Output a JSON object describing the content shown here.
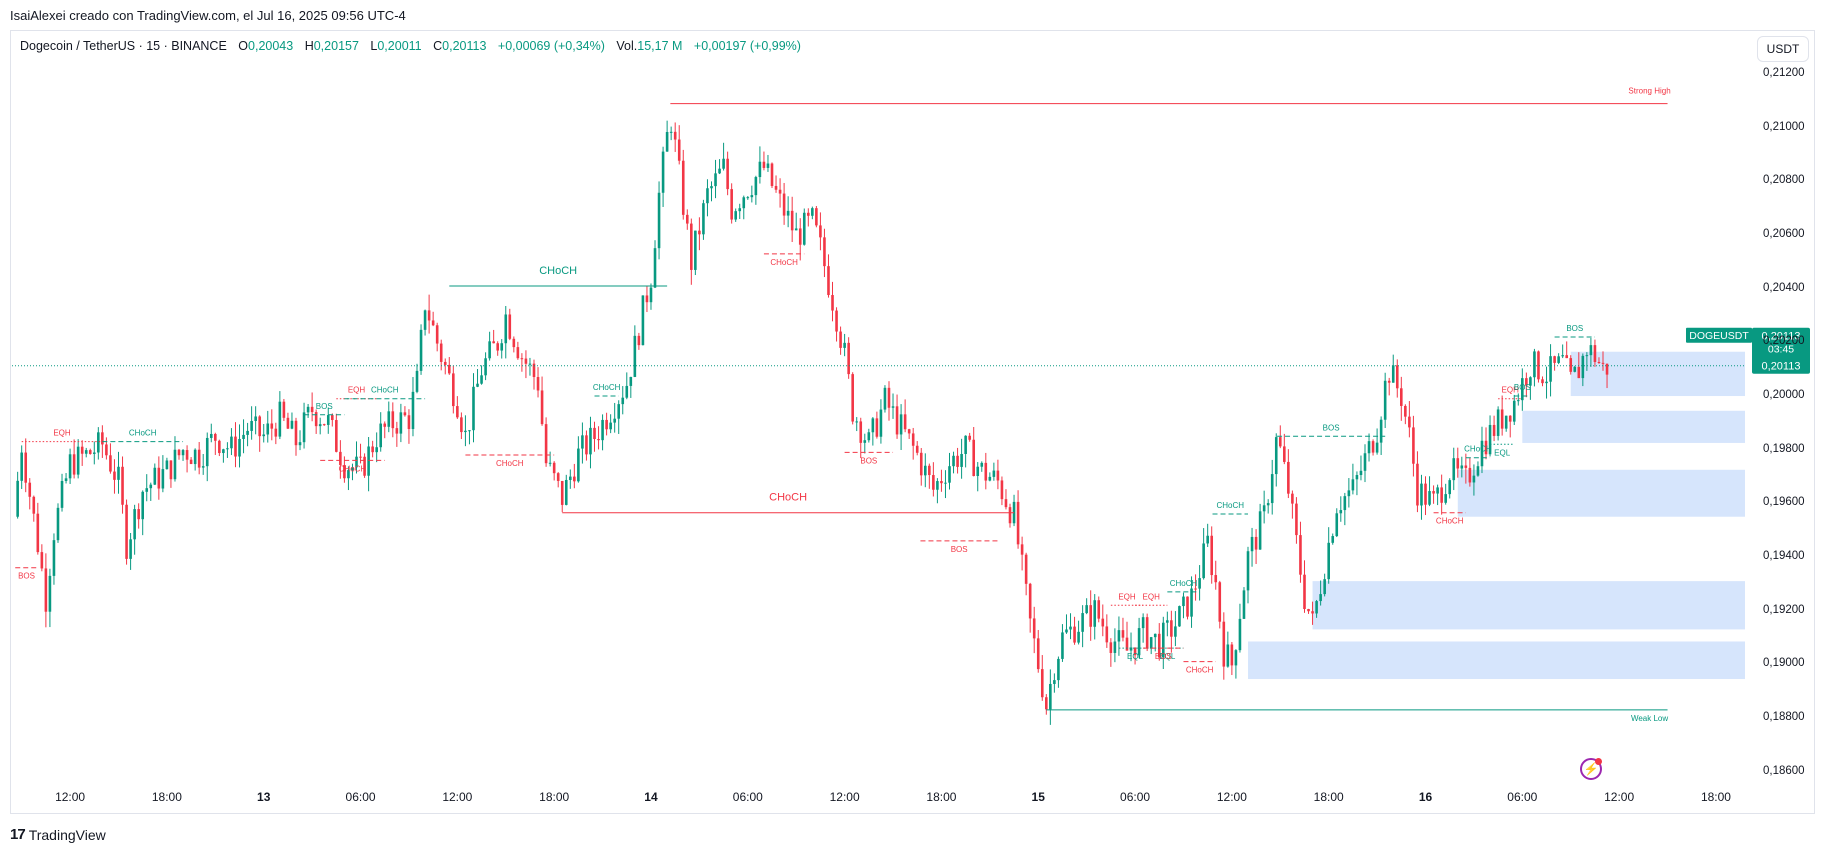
{
  "header": {
    "credit": "IsaiAlexei creado con TradingView.com, el Jul 16, 2025 09:56 UTC-4"
  },
  "legend": {
    "symbol": "Dogecoin / TetherUS · 15 · BINANCE",
    "o_label": "O",
    "o_value": "0,20043",
    "h_label": "H",
    "h_value": "0,20157",
    "l_label": "L",
    "l_value": "0,20011",
    "c_label": "C",
    "c_value": "0,20113",
    "change": "+0,00069 (+0,34%)",
    "vol_label": "Vol.",
    "vol_value": "15,17 M",
    "vol_change": "+0,00197 (+0,99%)"
  },
  "toolbar": {
    "currency": "USDT"
  },
  "footer": {
    "brand": "TradingView",
    "brand_mark": "17"
  },
  "colors": {
    "up": "#089981",
    "down": "#f23645",
    "zone": "#cfe0fb",
    "price_tag": "#089981"
  },
  "chart_data": {
    "type": "candlestick",
    "y_ticks": [
      "0,21200",
      "0,21000",
      "0,20800",
      "0,20600",
      "0,20400",
      "0,20200",
      "0,20000",
      "0,19800",
      "0,19600",
      "0,19400",
      "0,19200",
      "0,19000",
      "0,18800",
      "0,18600"
    ],
    "y_tick_values": [
      0.212,
      0.21,
      0.208,
      0.206,
      0.204,
      0.202,
      0.2,
      0.198,
      0.196,
      0.194,
      0.192,
      0.19,
      0.188,
      0.186
    ],
    "ylim": [
      0.1855,
      0.2126
    ],
    "x_ticks": [
      "12:00",
      "18:00",
      "13",
      "06:00",
      "12:00",
      "18:00",
      "14",
      "06:00",
      "12:00",
      "18:00",
      "15",
      "06:00",
      "12:00",
      "18:00",
      "16",
      "06:00",
      "12:00",
      "18:00"
    ],
    "x_tick_hours": [
      12,
      18,
      24,
      30,
      36,
      42,
      48,
      54,
      60,
      66,
      72,
      78,
      84,
      90,
      96,
      102,
      108,
      114
    ],
    "x_range_hours": [
      8.4,
      115.8
    ],
    "current": {
      "symbol": "DOGEUSDT",
      "price": "0,20113",
      "price_value": 0.20113,
      "countdown": "03:45"
    },
    "price_path": [
      {
        "t": 8.5,
        "p": 0.1955
      },
      {
        "t": 9,
        "p": 0.1982
      },
      {
        "t": 10,
        "p": 0.1945
      },
      {
        "t": 10.5,
        "p": 0.1925
      },
      {
        "t": 11,
        "p": 0.195
      },
      {
        "t": 12,
        "p": 0.1975
      },
      {
        "t": 13,
        "p": 0.1978
      },
      {
        "t": 14,
        "p": 0.1982
      },
      {
        "t": 15,
        "p": 0.1968
      },
      {
        "t": 15.5,
        "p": 0.1945
      },
      {
        "t": 16.5,
        "p": 0.1965
      },
      {
        "t": 18,
        "p": 0.1972
      },
      {
        "t": 19,
        "p": 0.198
      },
      {
        "t": 20,
        "p": 0.1978
      },
      {
        "t": 21,
        "p": 0.1985
      },
      {
        "t": 22,
        "p": 0.198
      },
      {
        "t": 23,
        "p": 0.1988
      },
      {
        "t": 24,
        "p": 0.1985
      },
      {
        "t": 25,
        "p": 0.1992
      },
      {
        "t": 26,
        "p": 0.1983
      },
      {
        "t": 27,
        "p": 0.1995
      },
      {
        "t": 28,
        "p": 0.199
      },
      {
        "t": 29,
        "p": 0.1975
      },
      {
        "t": 30,
        "p": 0.1972
      },
      {
        "t": 31,
        "p": 0.1985
      },
      {
        "t": 32,
        "p": 0.199
      },
      {
        "t": 33,
        "p": 0.1992
      },
      {
        "t": 33.5,
        "p": 0.2005
      },
      {
        "t": 34,
        "p": 0.2035
      },
      {
        "t": 35,
        "p": 0.2015
      },
      {
        "t": 36,
        "p": 0.1998
      },
      {
        "t": 36.5,
        "p": 0.1985
      },
      {
        "t": 37.5,
        "p": 0.201
      },
      {
        "t": 38.5,
        "p": 0.202
      },
      {
        "t": 39,
        "p": 0.203
      },
      {
        "t": 40,
        "p": 0.2015
      },
      {
        "t": 41,
        "p": 0.2005
      },
      {
        "t": 41.5,
        "p": 0.1975
      },
      {
        "t": 42.5,
        "p": 0.1962
      },
      {
        "t": 43.5,
        "p": 0.1978
      },
      {
        "t": 44.5,
        "p": 0.1985
      },
      {
        "t": 45.5,
        "p": 0.1995
      },
      {
        "t": 46.5,
        "p": 0.2005
      },
      {
        "t": 47,
        "p": 0.2018
      },
      {
        "t": 48,
        "p": 0.2045
      },
      {
        "t": 48.5,
        "p": 0.2075
      },
      {
        "t": 49.2,
        "p": 0.2105
      },
      {
        "t": 49.8,
        "p": 0.208
      },
      {
        "t": 50.5,
        "p": 0.205
      },
      {
        "t": 51.5,
        "p": 0.2075
      },
      {
        "t": 52.5,
        "p": 0.2085
      },
      {
        "t": 53,
        "p": 0.207
      },
      {
        "t": 54,
        "p": 0.2078
      },
      {
        "t": 55,
        "p": 0.2085
      },
      {
        "t": 56,
        "p": 0.2072
      },
      {
        "t": 57,
        "p": 0.206
      },
      {
        "t": 58,
        "p": 0.2065
      },
      {
        "t": 58.5,
        "p": 0.2055
      },
      {
        "t": 59.5,
        "p": 0.203
      },
      {
        "t": 60,
        "p": 0.2015
      },
      {
        "t": 60.5,
        "p": 0.1995
      },
      {
        "t": 61.5,
        "p": 0.1982
      },
      {
        "t": 62.5,
        "p": 0.1998
      },
      {
        "t": 63.5,
        "p": 0.1988
      },
      {
        "t": 64.5,
        "p": 0.1978
      },
      {
        "t": 65.5,
        "p": 0.1965
      },
      {
        "t": 66.5,
        "p": 0.1975
      },
      {
        "t": 67.5,
        "p": 0.198
      },
      {
        "t": 68.5,
        "p": 0.1972
      },
      {
        "t": 69.5,
        "p": 0.1968
      },
      {
        "t": 70.5,
        "p": 0.1955
      },
      {
        "t": 71,
        "p": 0.1935
      },
      {
        "t": 71.5,
        "p": 0.1915
      },
      {
        "t": 72,
        "p": 0.19
      },
      {
        "t": 72.5,
        "p": 0.1885
      },
      {
        "t": 73,
        "p": 0.19
      },
      {
        "t": 73.5,
        "p": 0.191
      },
      {
        "t": 74.5,
        "p": 0.1915
      },
      {
        "t": 75.5,
        "p": 0.192
      },
      {
        "t": 76.5,
        "p": 0.191
      },
      {
        "t": 77.5,
        "p": 0.1905
      },
      {
        "t": 78.5,
        "p": 0.1912
      },
      {
        "t": 79.5,
        "p": 0.1908
      },
      {
        "t": 80.5,
        "p": 0.1915
      },
      {
        "t": 81.5,
        "p": 0.1925
      },
      {
        "t": 82,
        "p": 0.1935
      },
      {
        "t": 82.5,
        "p": 0.1945
      },
      {
        "t": 83,
        "p": 0.193
      },
      {
        "t": 83.5,
        "p": 0.1905
      },
      {
        "t": 84,
        "p": 0.19
      },
      {
        "t": 84.5,
        "p": 0.192
      },
      {
        "t": 85,
        "p": 0.194
      },
      {
        "t": 86,
        "p": 0.1955
      },
      {
        "t": 86.8,
        "p": 0.1985
      },
      {
        "t": 87.5,
        "p": 0.1965
      },
      {
        "t": 88,
        "p": 0.1945
      },
      {
        "t": 88.5,
        "p": 0.1925
      },
      {
        "t": 89,
        "p": 0.1915
      },
      {
        "t": 89.5,
        "p": 0.193
      },
      {
        "t": 90,
        "p": 0.1945
      },
      {
        "t": 90.5,
        "p": 0.196
      },
      {
        "t": 91.5,
        "p": 0.1965
      },
      {
        "t": 92.5,
        "p": 0.198
      },
      {
        "t": 93,
        "p": 0.1988
      },
      {
        "t": 93.7,
        "p": 0.201
      },
      {
        "t": 94.5,
        "p": 0.2
      },
      {
        "t": 95,
        "p": 0.1985
      },
      {
        "t": 95.5,
        "p": 0.1965
      },
      {
        "t": 96.5,
        "p": 0.196
      },
      {
        "t": 97.5,
        "p": 0.1972
      },
      {
        "t": 98.5,
        "p": 0.1968
      },
      {
        "t": 99.5,
        "p": 0.1982
      },
      {
        "t": 100.5,
        "p": 0.199
      },
      {
        "t": 101.5,
        "p": 0.1998
      },
      {
        "t": 102,
        "p": 0.2005
      },
      {
        "t": 102.5,
        "p": 0.2012
      },
      {
        "t": 103.5,
        "p": 0.2008
      },
      {
        "t": 104.5,
        "p": 0.2012
      },
      {
        "t": 105,
        "p": 0.2005
      },
      {
        "t": 105.5,
        "p": 0.201
      },
      {
        "t": 106,
        "p": 0.2018
      },
      {
        "t": 106.5,
        "p": 0.2015
      },
      {
        "t": 107,
        "p": 0.201
      },
      {
        "t": 107.3,
        "p": 0.2011
      }
    ],
    "structures": [
      {
        "label": "CHoCH",
        "color": "up",
        "style": "solid",
        "t1": 35.5,
        "t2": 49.0,
        "p": 0.2041,
        "big": true
      },
      {
        "label": "CHoCH",
        "color": "down",
        "style": "solid",
        "t1": 42.5,
        "t2": 70.5,
        "p": 0.19565,
        "big": true
      },
      {
        "label": "Strong High",
        "color": "down",
        "style": "solid",
        "t1": 49.2,
        "t2": 111.0,
        "p": 0.2109,
        "right_label": true
      },
      {
        "label": "Weak Low",
        "color": "up",
        "style": "solid",
        "t1": 72.5,
        "t2": 111.0,
        "p": 0.1883,
        "right_label": true
      },
      {
        "label": "BOS",
        "color": "down",
        "style": "dashed",
        "t1": 8.6,
        "t2": 10.0,
        "p": 0.1936,
        "below": true
      },
      {
        "label": "EQH",
        "color": "down",
        "style": "dotted",
        "t1": 9.0,
        "t2": 14.0,
        "p": 0.1983
      },
      {
        "label": "CHoCH",
        "color": "up",
        "style": "dashed",
        "t1": 14.0,
        "t2": 19.0,
        "p": 0.1983
      },
      {
        "label": "BOS",
        "color": "up",
        "style": "dashed",
        "t1": 26.5,
        "t2": 29.0,
        "p": 0.1993
      },
      {
        "label": "EQH",
        "color": "down",
        "style": "dotted",
        "t1": 28.5,
        "t2": 31.0,
        "p": 0.1999
      },
      {
        "label": "CHoCH",
        "color": "up",
        "style": "dashed",
        "t1": 29.0,
        "t2": 34.0,
        "p": 0.1999
      },
      {
        "label": "CHoCH",
        "color": "down",
        "style": "dashed",
        "t1": 27.5,
        "t2": 31.5,
        "p": 0.1976,
        "below": true
      },
      {
        "label": "CHoCH",
        "color": "down",
        "style": "dashed",
        "t1": 36.5,
        "t2": 42.0,
        "p": 0.1978,
        "below": true
      },
      {
        "label": "CHoCH",
        "color": "up",
        "style": "dashed",
        "t1": 44.5,
        "t2": 46.0,
        "p": 0.2
      },
      {
        "label": "CHoCH",
        "color": "down",
        "style": "dashed",
        "t1": 55.0,
        "t2": 57.5,
        "p": 0.2053,
        "below": true
      },
      {
        "label": "BOS",
        "color": "down",
        "style": "dashed",
        "t1": 60.0,
        "t2": 63.0,
        "p": 0.1979,
        "below": true
      },
      {
        "label": "BOS",
        "color": "down",
        "style": "dashed",
        "t1": 64.7,
        "t2": 69.5,
        "p": 0.1946,
        "below": true
      },
      {
        "label": "EQH",
        "color": "down",
        "style": "dotted",
        "t1": 76.5,
        "t2": 78.5,
        "p": 0.1922
      },
      {
        "label": "EQH",
        "color": "down",
        "style": "dotted",
        "t1": 78.0,
        "t2": 80.0,
        "p": 0.1922
      },
      {
        "label": "CHoCH",
        "color": "up",
        "style": "dashed",
        "t1": 80.0,
        "t2": 82.0,
        "p": 0.1927
      },
      {
        "label": "EQL",
        "color": "up",
        "style": "dotted",
        "t1": 77.0,
        "t2": 79.0,
        "p": 0.1906,
        "below": true
      },
      {
        "label": "EQL",
        "color": "up",
        "style": "dotted",
        "t1": 79.0,
        "t2": 81.0,
        "p": 0.1906,
        "below": true
      },
      {
        "label": "BOS",
        "color": "down",
        "style": "dashed",
        "t1": 78.5,
        "t2": 81.0,
        "p": 0.1906,
        "below": true
      },
      {
        "label": "CHoCH",
        "color": "down",
        "style": "dashed",
        "t1": 81.0,
        "t2": 83.0,
        "p": 0.1901,
        "below": true
      },
      {
        "label": "CHoCH",
        "color": "up",
        "style": "dashed",
        "t1": 82.8,
        "t2": 85.0,
        "p": 0.1956
      },
      {
        "label": "BOS",
        "color": "up",
        "style": "dashed",
        "t1": 86.8,
        "t2": 93.5,
        "p": 0.1985
      },
      {
        "label": "CHoCH",
        "color": "up",
        "style": "dashed",
        "t1": 98.5,
        "t2": 100.0,
        "p": 0.1977
      },
      {
        "label": "CHoCH",
        "color": "down",
        "style": "dashed",
        "t1": 96.5,
        "t2": 98.5,
        "p": 0.19565,
        "below": true
      },
      {
        "label": "EQL",
        "color": "up",
        "style": "dotted",
        "t1": 100.0,
        "t2": 101.5,
        "p": 0.1982,
        "below": true
      },
      {
        "label": "EQH",
        "color": "down",
        "style": "dotted",
        "t1": 100.5,
        "t2": 102.0,
        "p": 0.1999
      },
      {
        "label": "BOS",
        "color": "up",
        "style": "dashed",
        "t1": 101.5,
        "t2": 102.5,
        "p": 0.2
      },
      {
        "label": "BOS",
        "color": "up",
        "style": "dashed",
        "t1": 104.0,
        "t2": 106.5,
        "p": 0.2022
      }
    ],
    "zones": [
      {
        "t1": 105.0,
        "p_top": 0.20165,
        "p_bot": 0.2
      },
      {
        "t1": 102.0,
        "p_top": 0.19945,
        "p_bot": 0.19825
      },
      {
        "t1": 98.0,
        "p_top": 0.19725,
        "p_bot": 0.1955
      },
      {
        "t1": 89.0,
        "p_top": 0.1931,
        "p_bot": 0.1913
      },
      {
        "t1": 85.0,
        "p_top": 0.19085,
        "p_bot": 0.18945
      }
    ]
  }
}
